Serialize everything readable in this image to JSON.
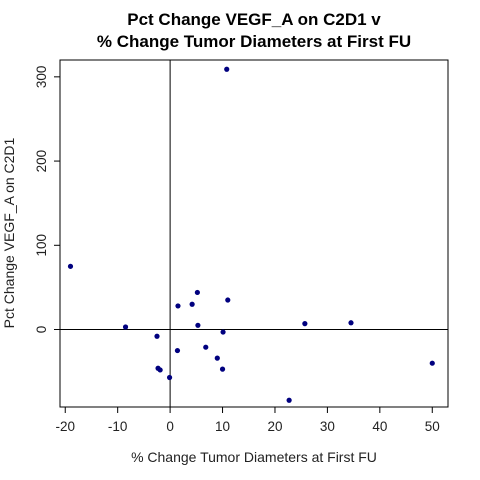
{
  "chart_data": {
    "type": "scatter",
    "title": "Pct Change VEGF_A on C2D1 v",
    "subtitle": "% Change Tumor Diameters at First FU",
    "xlabel": "% Change Tumor Diameters at First FU",
    "ylabel": "Pct Change VEGF_A on C2D1",
    "xlim": [
      -21,
      53
    ],
    "ylim": [
      -92,
      320
    ],
    "xticks": [
      -20,
      -10,
      0,
      10,
      20,
      30,
      40,
      50
    ],
    "yticks": [
      0,
      100,
      200,
      300
    ],
    "reference_lines": {
      "x": 0,
      "y": 0
    },
    "point_color": "#00007f",
    "grid": false,
    "points": [
      {
        "x": -19.0,
        "y": 75
      },
      {
        "x": -8.5,
        "y": 3
      },
      {
        "x": -2.5,
        "y": -8
      },
      {
        "x": -2.3,
        "y": -46
      },
      {
        "x": -1.9,
        "y": -48
      },
      {
        "x": -0.1,
        "y": -57
      },
      {
        "x": 1.4,
        "y": -25
      },
      {
        "x": 1.5,
        "y": 28
      },
      {
        "x": 4.2,
        "y": 30
      },
      {
        "x": 5.2,
        "y": 44
      },
      {
        "x": 5.3,
        "y": 5
      },
      {
        "x": 6.8,
        "y": -21
      },
      {
        "x": 9.0,
        "y": -34
      },
      {
        "x": 10.0,
        "y": -47
      },
      {
        "x": 10.1,
        "y": -3
      },
      {
        "x": 10.8,
        "y": 309
      },
      {
        "x": 11.0,
        "y": 35
      },
      {
        "x": 22.7,
        "y": -84
      },
      {
        "x": 25.7,
        "y": 7
      },
      {
        "x": 34.5,
        "y": 8
      },
      {
        "x": 50.0,
        "y": -40
      }
    ]
  }
}
